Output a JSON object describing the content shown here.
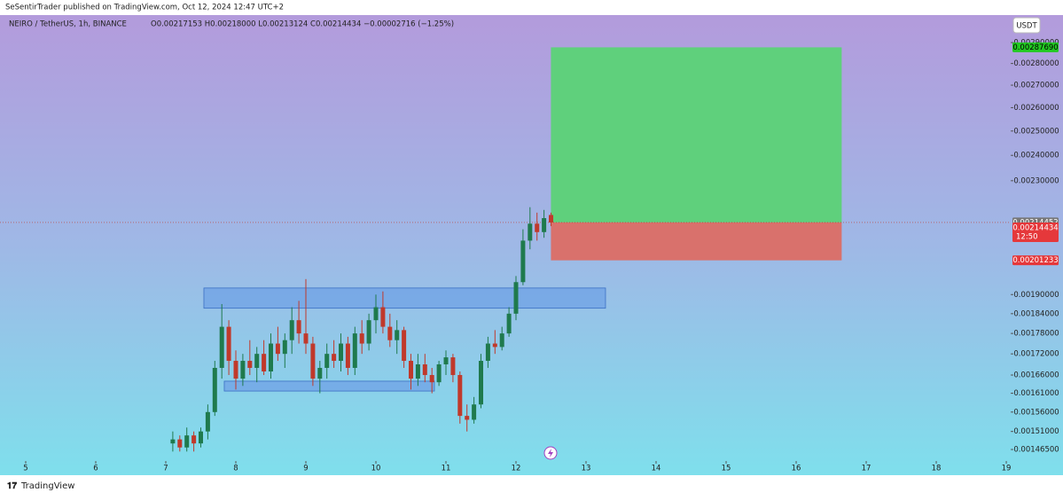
{
  "header": {
    "published": "SeSentirTrader published on TradingView.com, Oct 12, 2024 12:47 UTC+2"
  },
  "footer": {
    "brand": "TradingView"
  },
  "chart_data": {
    "type": "candlestick",
    "title": "NEIRO / TetherUS, 1h, BINANCE",
    "subtitle": "O0.00217153 H0.00218000 L0.00213124 C0.00214434 −0.00002716 (−1.25%)",
    "currency": "USDT",
    "log_scale": true,
    "grid": false,
    "up_color": "#1f7a4d",
    "down_color": "#c0392b",
    "xlim": [
      4.633,
      19.063
    ],
    "xticks": [
      5,
      6,
      7,
      8,
      9,
      10,
      11,
      12,
      13,
      14,
      15,
      16,
      17,
      18,
      19
    ],
    "ylim": [
      0.001437,
      0.003037
    ],
    "yticks": [
      {
        "value": 0.0029,
        "label": "0.00290000"
      },
      {
        "value": 0.0028,
        "label": "0.00280000"
      },
      {
        "value": 0.0027,
        "label": "0.00270000"
      },
      {
        "value": 0.0026,
        "label": "0.00260000"
      },
      {
        "value": 0.0025,
        "label": "0.00250000"
      },
      {
        "value": 0.0024,
        "label": "0.00240000"
      },
      {
        "value": 0.0023,
        "label": "0.00230000"
      },
      {
        "value": 0.0019,
        "label": "0.00190000"
      },
      {
        "value": 0.00184,
        "label": "0.00184000"
      },
      {
        "value": 0.00178,
        "label": "0.00178000"
      },
      {
        "value": 0.00172,
        "label": "0.00172000"
      },
      {
        "value": 0.00166,
        "label": "0.00166000"
      },
      {
        "value": 0.00161,
        "label": "0.00161000"
      },
      {
        "value": 0.00156,
        "label": "0.00156000"
      },
      {
        "value": 0.00151,
        "label": "0.00151000"
      },
      {
        "value": 0.001465,
        "label": "0.00146500"
      }
    ],
    "x": [
      7.1,
      7.2,
      7.3,
      7.4,
      7.5,
      7.6,
      7.7,
      7.8,
      7.9,
      8.0,
      8.1,
      8.2,
      8.3,
      8.4,
      8.5,
      8.6,
      8.7,
      8.8,
      8.9,
      9.0,
      9.1,
      9.2,
      9.3,
      9.4,
      9.5,
      9.6,
      9.7,
      9.8,
      9.9,
      10.0,
      10.1,
      10.2,
      10.3,
      10.4,
      10.5,
      10.6,
      10.7,
      10.8,
      10.9,
      11.0,
      11.1,
      11.2,
      11.3,
      11.4,
      11.5,
      11.6,
      11.7,
      11.8,
      11.9,
      12.0,
      12.1,
      12.2,
      12.3,
      12.4,
      12.5
    ],
    "open": [
      0.00148,
      0.00149,
      0.00147,
      0.0015,
      0.00148,
      0.00151,
      0.00156,
      0.00168,
      0.0018,
      0.0017,
      0.00165,
      0.0017,
      0.00168,
      0.00172,
      0.00167,
      0.00175,
      0.00172,
      0.00176,
      0.00182,
      0.00178,
      0.00175,
      0.00165,
      0.00168,
      0.00172,
      0.0017,
      0.00175,
      0.00168,
      0.00178,
      0.00175,
      0.00182,
      0.00186,
      0.0018,
      0.00176,
      0.00179,
      0.0017,
      0.00165,
      0.00169,
      0.00166,
      0.00164,
      0.00169,
      0.00171,
      0.00166,
      0.00155,
      0.00154,
      0.00158,
      0.0017,
      0.00175,
      0.00174,
      0.00178,
      0.00184,
      0.00194,
      0.00208,
      0.00214,
      0.00211,
      0.00217153
    ],
    "high": [
      0.00151,
      0.0015,
      0.00152,
      0.00151,
      0.00152,
      0.00158,
      0.0017,
      0.00187,
      0.00182,
      0.00173,
      0.00172,
      0.00176,
      0.00174,
      0.00176,
      0.00178,
      0.0018,
      0.00178,
      0.00186,
      0.00188,
      0.00195,
      0.00177,
      0.0017,
      0.00175,
      0.00176,
      0.00178,
      0.00177,
      0.0018,
      0.00182,
      0.00184,
      0.0019,
      0.00191,
      0.00184,
      0.00182,
      0.0018,
      0.00172,
      0.00172,
      0.00172,
      0.00168,
      0.0017,
      0.00173,
      0.00172,
      0.00167,
      0.00158,
      0.0016,
      0.00172,
      0.00177,
      0.00179,
      0.0018,
      0.00186,
      0.00196,
      0.00212,
      0.0022,
      0.00218,
      0.00219,
      0.00218
    ],
    "low": [
      0.00146,
      0.00146,
      0.00146,
      0.00146,
      0.00147,
      0.00149,
      0.00155,
      0.00165,
      0.00166,
      0.00162,
      0.00163,
      0.00166,
      0.00164,
      0.00166,
      0.00165,
      0.0017,
      0.00168,
      0.00172,
      0.00175,
      0.00172,
      0.00163,
      0.00161,
      0.00165,
      0.00168,
      0.00167,
      0.00166,
      0.00166,
      0.00172,
      0.00173,
      0.00178,
      0.00178,
      0.00174,
      0.00172,
      0.00168,
      0.00162,
      0.00163,
      0.00164,
      0.00161,
      0.00163,
      0.00166,
      0.00164,
      0.00153,
      0.00151,
      0.00153,
      0.00157,
      0.00168,
      0.00172,
      0.00173,
      0.00177,
      0.00182,
      0.00193,
      0.00205,
      0.00208,
      0.00209,
      0.00213124
    ],
    "close": [
      0.00149,
      0.00147,
      0.0015,
      0.00148,
      0.00151,
      0.00156,
      0.00168,
      0.0018,
      0.0017,
      0.00165,
      0.0017,
      0.00168,
      0.00172,
      0.00167,
      0.00175,
      0.00172,
      0.00176,
      0.00182,
      0.00178,
      0.00175,
      0.00165,
      0.00168,
      0.00172,
      0.0017,
      0.00175,
      0.00168,
      0.00178,
      0.00175,
      0.00182,
      0.00186,
      0.0018,
      0.00176,
      0.00179,
      0.0017,
      0.00165,
      0.00169,
      0.00166,
      0.00164,
      0.00169,
      0.00171,
      0.00166,
      0.00155,
      0.00154,
      0.00158,
      0.0017,
      0.00175,
      0.00174,
      0.00178,
      0.00184,
      0.00194,
      0.00208,
      0.00214,
      0.00211,
      0.00216,
      0.00214434
    ],
    "zones": [
      {
        "x": [
          7.544,
          13.278
        ],
        "y": [
          0.001857,
          0.001921
        ],
        "color": "#6fa2e6"
      },
      {
        "x": [
          7.835,
          10.835
        ],
        "y": [
          0.001616,
          0.001643
        ],
        "color": "#6fa2e6"
      }
    ],
    "position": {
      "x": [
        12.499,
        16.65
      ],
      "target": {
        "value": 0.0028769,
        "label": "0.00287690"
      },
      "entry": {
        "value": 0.00214452,
        "label": "0.00214452"
      },
      "stop": {
        "value": 0.00201233,
        "label": "0.00201233"
      },
      "profit_color": "#5fd07c",
      "loss_color": "#d9716c"
    },
    "last_price": {
      "value": 0.00214434,
      "label": "0.00214434"
    },
    "countdown": "12:50"
  }
}
